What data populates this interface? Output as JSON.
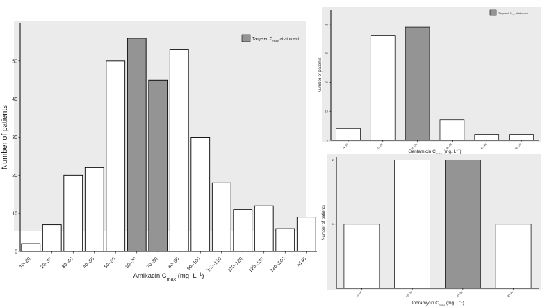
{
  "colors": {
    "panel_bg": "#ebebeb",
    "bar_plain": "#ffffff",
    "bar_target": "#949494",
    "stroke": "#000000"
  },
  "chart_data": [
    {
      "type": "bar",
      "title": "",
      "xlabel_main": "Amikacin C",
      "xlabel_sub": "max",
      "xlabel_unit": " (mg. L",
      "xlabel_sup": "−1",
      "xlabel_end": ")",
      "ylabel": "Number of patients",
      "legend": {
        "label_main": "Targeted C",
        "label_sub": "max",
        "label_end": " attainment",
        "position": "top-right"
      },
      "categories": [
        "10–20",
        "20–30",
        "30–40",
        "40–50",
        "50–60",
        "60–70",
        "70–80",
        "80–90",
        "90–100",
        "100–110",
        "110–120",
        "120–130",
        "130–140",
        ">140"
      ],
      "values": [
        2,
        7,
        20,
        22,
        50,
        56,
        45,
        53,
        30,
        18,
        11,
        12,
        6,
        9
      ],
      "highlight": [
        false,
        false,
        false,
        false,
        false,
        true,
        true,
        false,
        false,
        false,
        false,
        false,
        false,
        false
      ],
      "ylim": [
        0,
        60
      ],
      "yticks": [
        0,
        10,
        20,
        30,
        40,
        50
      ],
      "grid": false
    },
    {
      "type": "bar",
      "title": "",
      "xlabel_main": "Gentamicin C",
      "xlabel_sub": "max",
      "xlabel_unit": " (mg. L",
      "xlabel_sup": "−1",
      "xlabel_end": ")",
      "ylabel": "Number of patients",
      "legend": {
        "label_main": "Targeted C",
        "label_sub": "max",
        "label_end": " attainment",
        "position": "top-right"
      },
      "categories": [
        "4–10",
        "10–20",
        "20–30",
        "30–40",
        "40–50",
        "50–60"
      ],
      "values": [
        4,
        36,
        39,
        7,
        2,
        2
      ],
      "highlight": [
        false,
        false,
        true,
        false,
        false,
        false
      ],
      "ylim": [
        0,
        45
      ],
      "yticks": [
        0,
        10,
        20,
        30,
        40
      ],
      "grid": false
    },
    {
      "type": "bar",
      "title": "",
      "xlabel_main": "Tobramycin C",
      "xlabel_sub": "max",
      "xlabel_unit": " (mg. L",
      "xlabel_sup": "−1",
      "xlabel_end": ")",
      "ylabel": "Number of patients",
      "categories": [
        "5–10",
        "10–20",
        "20–30",
        "30–40"
      ],
      "values": [
        1,
        2,
        2,
        1
      ],
      "highlight": [
        false,
        false,
        true,
        false
      ],
      "ylim": [
        0,
        2.05
      ],
      "yticks": [
        1,
        2
      ],
      "grid": false
    }
  ]
}
